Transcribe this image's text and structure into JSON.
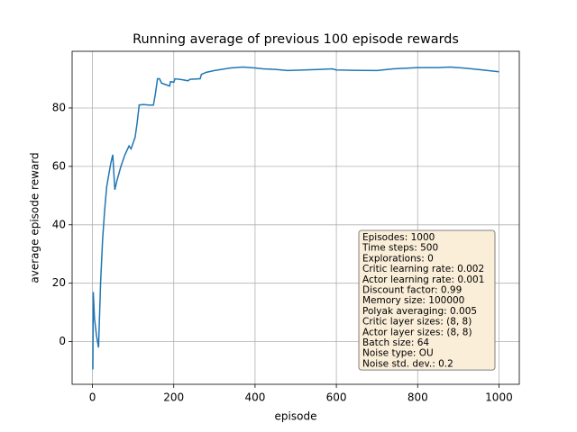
{
  "chart_data": {
    "type": "line",
    "title": "Running average of previous 100 episode rewards",
    "x_label": "episode",
    "y_label": "average episode reward",
    "xlim": [
      -50,
      1050
    ],
    "ylim": [
      -14.6,
      99.4
    ],
    "xticks": [
      0,
      200,
      400,
      600,
      800,
      1000
    ],
    "yticks": [
      0,
      20,
      40,
      60,
      80
    ],
    "grid": true,
    "series": [
      {
        "color": "#1f77b4",
        "x": [
          1,
          2,
          5,
          10,
          15,
          20,
          25,
          30,
          35,
          40,
          45,
          50,
          55,
          60,
          70,
          80,
          90,
          95,
          100,
          105,
          110,
          115,
          125,
          140,
          150,
          155,
          160,
          165,
          170,
          180,
          190,
          192,
          200,
          203,
          220,
          235,
          240,
          265,
          268,
          280,
          300,
          340,
          370,
          400,
          420,
          450,
          480,
          520,
          560,
          590,
          600,
          640,
          700,
          740,
          800,
          850,
          880,
          920,
          960,
          1000
        ],
        "values": [
          -9.5,
          17,
          8,
          2,
          -2,
          20,
          35,
          45,
          53,
          57,
          61,
          64,
          52,
          55,
          60,
          64,
          67,
          66,
          68,
          70,
          75,
          81,
          81.2,
          81,
          81,
          85,
          90,
          90,
          88.5,
          88,
          87.5,
          89,
          88.8,
          90,
          89.7,
          89.3,
          89.8,
          90,
          91.5,
          92.2,
          92.8,
          93.7,
          94,
          93.7,
          93.4,
          93.2,
          92.8,
          93,
          93.2,
          93.4,
          93,
          92.9,
          92.8,
          93.4,
          93.8,
          93.8,
          94,
          93.6,
          93,
          92.4
        ]
      }
    ],
    "annotations": [
      "Episodes: 1000",
      "Time steps: 500",
      "Explorations: 0",
      "Critic learning rate: 0.002",
      "Actor learning rate: 0.001",
      "Discount factor: 0.99",
      "Memory size: 100000",
      "Polyak averaging: 0.005",
      "Critic layer sizes: (8, 8)",
      "Actor layer sizes: (8, 8)",
      "Batch size: 64",
      "Noise type: OU",
      "Noise std. dev.: 0.2"
    ]
  }
}
